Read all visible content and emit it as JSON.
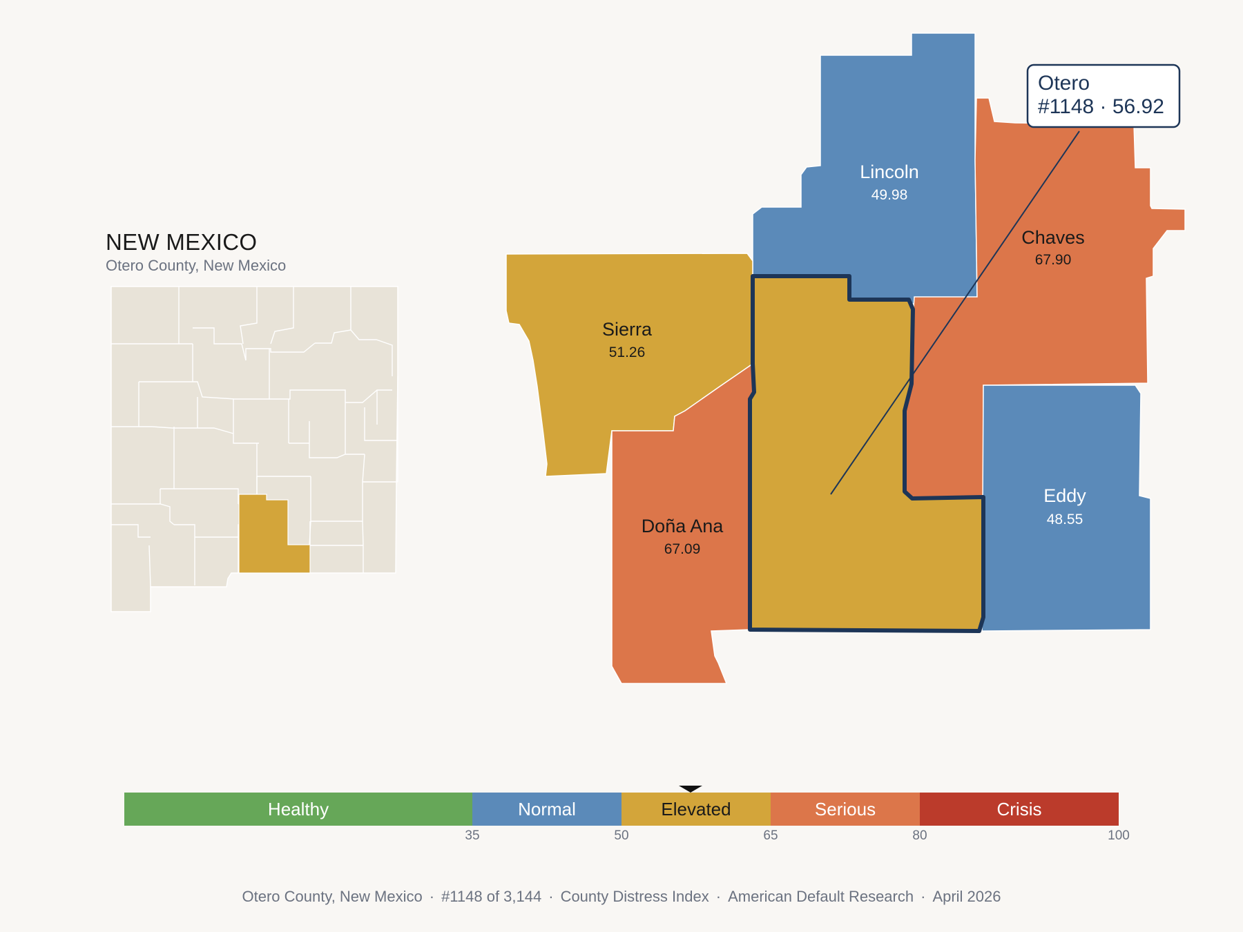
{
  "state": {
    "title": "NEW MEXICO",
    "subtitle": "Otero County, New Mexico"
  },
  "counties": {
    "lincoln": {
      "name": "Lincoln",
      "value": "49.98",
      "category": "Normal"
    },
    "chaves": {
      "name": "Chaves",
      "value": "67.90",
      "category": "Serious"
    },
    "sierra": {
      "name": "Sierra",
      "value": "51.26",
      "category": "Elevated"
    },
    "dona_ana": {
      "name": "Doña Ana",
      "value": "67.09",
      "category": "Serious"
    },
    "eddy": {
      "name": "Eddy",
      "value": "48.55",
      "category": "Normal"
    },
    "otero": {
      "name": "Otero",
      "value": "56.92",
      "category": "Elevated",
      "rank": "#1148"
    }
  },
  "callout": {
    "line1": "Otero",
    "line2": "#1148 · 56.92"
  },
  "legend": {
    "segments": [
      {
        "label": "Healthy",
        "color": "#66a758",
        "from": 0,
        "to": 35
      },
      {
        "label": "Normal",
        "color": "#5b8ab9",
        "from": 35,
        "to": 50
      },
      {
        "label": "Elevated",
        "color": "#d3a53a",
        "from": 50,
        "to": 65
      },
      {
        "label": "Serious",
        "color": "#dc764a",
        "from": 65,
        "to": 80
      },
      {
        "label": "Crisis",
        "color": "#bb3b2b",
        "from": 80,
        "to": 100
      }
    ],
    "ticks": [
      "35",
      "50",
      "65",
      "80",
      "100"
    ],
    "marker_value": 56.92
  },
  "colors": {
    "normal": "#5b8ab9",
    "elevated": "#d3a53a",
    "serious": "#dc764a",
    "highlight_outline": "#1d3557",
    "inset_fill": "#e8e3d8"
  },
  "footer": {
    "county": "Otero County, New Mexico",
    "rank": "#1148 of 3,144",
    "index": "County Distress Index",
    "source": "American Default Research",
    "date": "April 2026"
  }
}
